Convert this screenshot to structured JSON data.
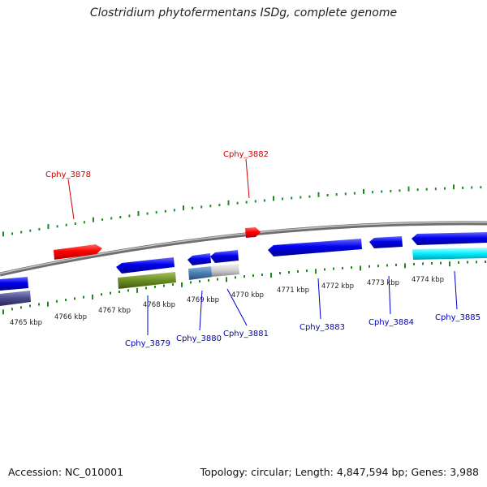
{
  "title": "Clostridium phytofermentans ISDg, complete genome",
  "footer": {
    "accession": "Accession: NC_010001",
    "summary": "Topology: circular; Length: 4,847,594 bp; Genes: 3,988"
  },
  "colors": {
    "backbone": "#8a8a8a",
    "tick": "#1e8a1e",
    "forward_gene": "#ff0000",
    "reverse_gene": "#0000e0",
    "cyan_feature": "#00e8ff",
    "olive_feature": "#6b8e23",
    "steel_feature": "#4a7fb0",
    "grey_feature": "#c8c8c8",
    "slate_feature": "#4a4a8a",
    "label_top": "#d00000",
    "label_bottom": "#0000c8"
  },
  "scale_labels": [
    "4765 kbp",
    "4766 kbp",
    "4767 kbp",
    "4768 kbp",
    "4769 kbp",
    "4770 kbp",
    "4771 kbp",
    "4772 kbp",
    "4773 kbp",
    "4774 kbp"
  ],
  "genes_top": [
    {
      "name": "Cphy_3878"
    },
    {
      "name": "Cphy_3882"
    }
  ],
  "genes_bottom": [
    {
      "name": "Cphy_3879"
    },
    {
      "name": "Cphy_3880"
    },
    {
      "name": "Cphy_3881"
    },
    {
      "name": "Cphy_3883"
    },
    {
      "name": "Cphy_3884"
    },
    {
      "name": "Cphy_3885"
    }
  ]
}
